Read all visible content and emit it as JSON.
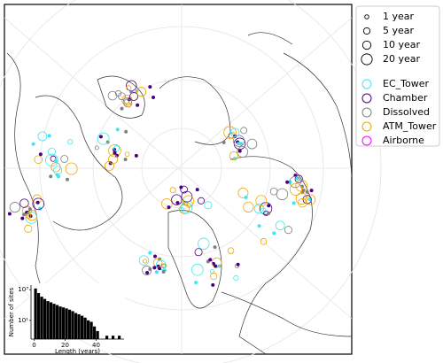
{
  "legend": {
    "sizes": [
      {
        "label": "1 year",
        "value": 1
      },
      {
        "label": "5 year",
        "value": 5
      },
      {
        "label": "10 year",
        "value": 10
      },
      {
        "label": "20 year",
        "value": 20
      }
    ],
    "types": [
      {
        "label": "EC_Tower",
        "color": "#3fe6f0"
      },
      {
        "label": "Chamber",
        "color": "#4b0082"
      },
      {
        "label": "Dissolved",
        "color": "#808080"
      },
      {
        "label": "ATM_Tower",
        "color": "#f0a500"
      },
      {
        "label": "Airborne",
        "color": "#ff00ff"
      }
    ]
  },
  "chart_data": {
    "type": "histogram",
    "ylabel": "Number of sites",
    "xlabel": "Length (years)",
    "bins": [
      0,
      2,
      4,
      6,
      8,
      10,
      12,
      14,
      16,
      18,
      20,
      22,
      24,
      26,
      28,
      30,
      32,
      34,
      36,
      38,
      40,
      42,
      44,
      46,
      48,
      50,
      52,
      54,
      56
    ],
    "values": [
      1200,
      600,
      350,
      250,
      180,
      150,
      120,
      100,
      80,
      70,
      60,
      50,
      40,
      30,
      25,
      20,
      15,
      10,
      8,
      4,
      2,
      0,
      0,
      1,
      0,
      1,
      0,
      1
    ],
    "color": "#000000",
    "xlim": [
      -2,
      58
    ],
    "xticks": [
      0,
      20,
      40
    ],
    "ylim": [
      0.6,
      2000
    ],
    "ylog": true,
    "yticks": [
      {
        "value": 10,
        "label": "10¹"
      },
      {
        "value": 1000,
        "label": "10³"
      }
    ]
  }
}
